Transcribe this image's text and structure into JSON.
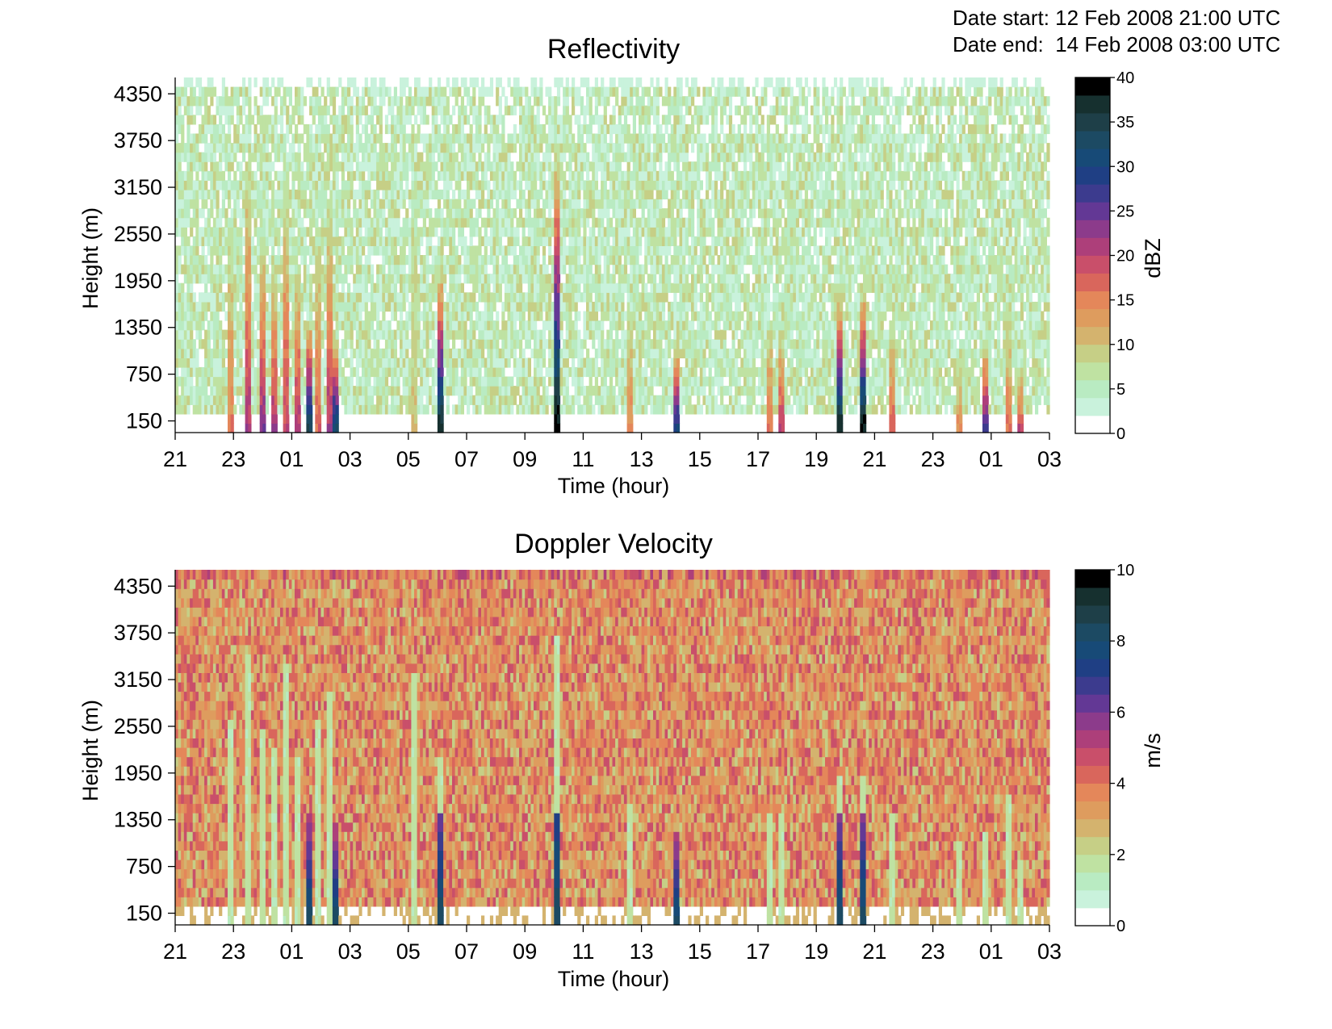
{
  "header": {
    "date_start_label": "Date start:",
    "date_start_value": "12 Feb 2008 21:00 UTC",
    "date_end_label": "Date end:",
    "date_end_value": "14 Feb 2008 03:00 UTC"
  },
  "chart_data": [
    {
      "type": "heatmap",
      "title": "Reflectivity",
      "xlabel": "Time (hour)",
      "ylabel": "Height (m)",
      "x_ticks": [
        "21",
        "23",
        "01",
        "03",
        "05",
        "07",
        "09",
        "11",
        "13",
        "15",
        "17",
        "19",
        "21",
        "23",
        "01",
        "03"
      ],
      "x_range_hours": [
        0,
        30
      ],
      "y_ticks": [
        150,
        750,
        1350,
        1950,
        2550,
        3150,
        3750,
        4350
      ],
      "y_range": [
        0,
        4560
      ],
      "colorbar": {
        "label": "dBZ",
        "ticks": [
          0,
          5,
          10,
          15,
          20,
          25,
          30,
          35,
          40
        ],
        "range": [
          0,
          40
        ],
        "colors": [
          "#ffffff",
          "#c9f2dc",
          "#b9ebc2",
          "#bfe2a2",
          "#c6cf86",
          "#d4b36e",
          "#de9c5e",
          "#e4875a",
          "#d9665c",
          "#c94f6a",
          "#ad3f7a",
          "#8c3b8b",
          "#633895",
          "#3c3b8e",
          "#1f3f84",
          "#174a77",
          "#1c4a63",
          "#1e3f48",
          "#16302f",
          "#000000"
        ]
      },
      "grid": false,
      "background_range": [
        1,
        9
      ],
      "events": [
        {
          "t": 1.9,
          "top": 2700,
          "peak": 16
        },
        {
          "t": 2.5,
          "top": 3500,
          "peak": 22
        },
        {
          "t": 3.0,
          "top": 2500,
          "peak": 24
        },
        {
          "t": 3.4,
          "top": 2300,
          "peak": 22
        },
        {
          "t": 3.8,
          "top": 3400,
          "peak": 20
        },
        {
          "t": 4.2,
          "top": 2200,
          "peak": 22
        },
        {
          "t": 4.6,
          "top": 1500,
          "peak": 36
        },
        {
          "t": 4.9,
          "top": 2600,
          "peak": 17
        },
        {
          "t": 5.3,
          "top": 3000,
          "peak": 22
        },
        {
          "t": 5.5,
          "top": 1300,
          "peak": 34
        },
        {
          "t": 8.2,
          "top": 3300,
          "peak": 10
        },
        {
          "t": 9.1,
          "top": 2200,
          "peak": 38
        },
        {
          "t": 13.1,
          "top": 3700,
          "peak": 40
        },
        {
          "t": 15.6,
          "top": 1600,
          "peak": 15
        },
        {
          "t": 17.2,
          "top": 1200,
          "peak": 32
        },
        {
          "t": 20.4,
          "top": 1500,
          "peak": 16
        },
        {
          "t": 20.8,
          "top": 1400,
          "peak": 20
        },
        {
          "t": 22.8,
          "top": 1900,
          "peak": 38
        },
        {
          "t": 23.6,
          "top": 1900,
          "peak": 40
        },
        {
          "t": 24.6,
          "top": 1500,
          "peak": 18
        },
        {
          "t": 26.9,
          "top": 1100,
          "peak": 14
        },
        {
          "t": 27.8,
          "top": 1200,
          "peak": 28
        },
        {
          "t": 28.6,
          "top": 1700,
          "peak": 16
        },
        {
          "t": 29.0,
          "top": 900,
          "peak": 20
        }
      ]
    },
    {
      "type": "heatmap",
      "title": "Doppler Velocity",
      "xlabel": "Time (hour)",
      "ylabel": "Height (m)",
      "x_ticks": [
        "21",
        "23",
        "01",
        "03",
        "05",
        "07",
        "09",
        "11",
        "13",
        "15",
        "17",
        "19",
        "21",
        "23",
        "01",
        "03"
      ],
      "x_range_hours": [
        0,
        30
      ],
      "y_ticks": [
        150,
        750,
        1350,
        1950,
        2550,
        3150,
        3750,
        4350
      ],
      "y_range": [
        0,
        4560
      ],
      "colorbar": {
        "label": "m/s",
        "ticks": [
          0,
          2,
          4,
          6,
          8,
          10
        ],
        "tick_labels": [
          "0",
          "2",
          "4",
          "6",
          "8",
          "10"
        ],
        "range": [
          0,
          10
        ],
        "colors": [
          "#ffffff",
          "#c9f2dc",
          "#b9ebc2",
          "#bfe2a2",
          "#c6cf86",
          "#d4b36e",
          "#de9c5e",
          "#e4875a",
          "#d9665c",
          "#c94f6a",
          "#ad3f7a",
          "#8c3b8b",
          "#633895",
          "#3c3b8e",
          "#1f3f84",
          "#174a77",
          "#1c4a63",
          "#1e3f48",
          "#16302f",
          "#000000"
        ]
      },
      "grid": false,
      "background_range": [
        2.3,
        4.8
      ]
    }
  ]
}
